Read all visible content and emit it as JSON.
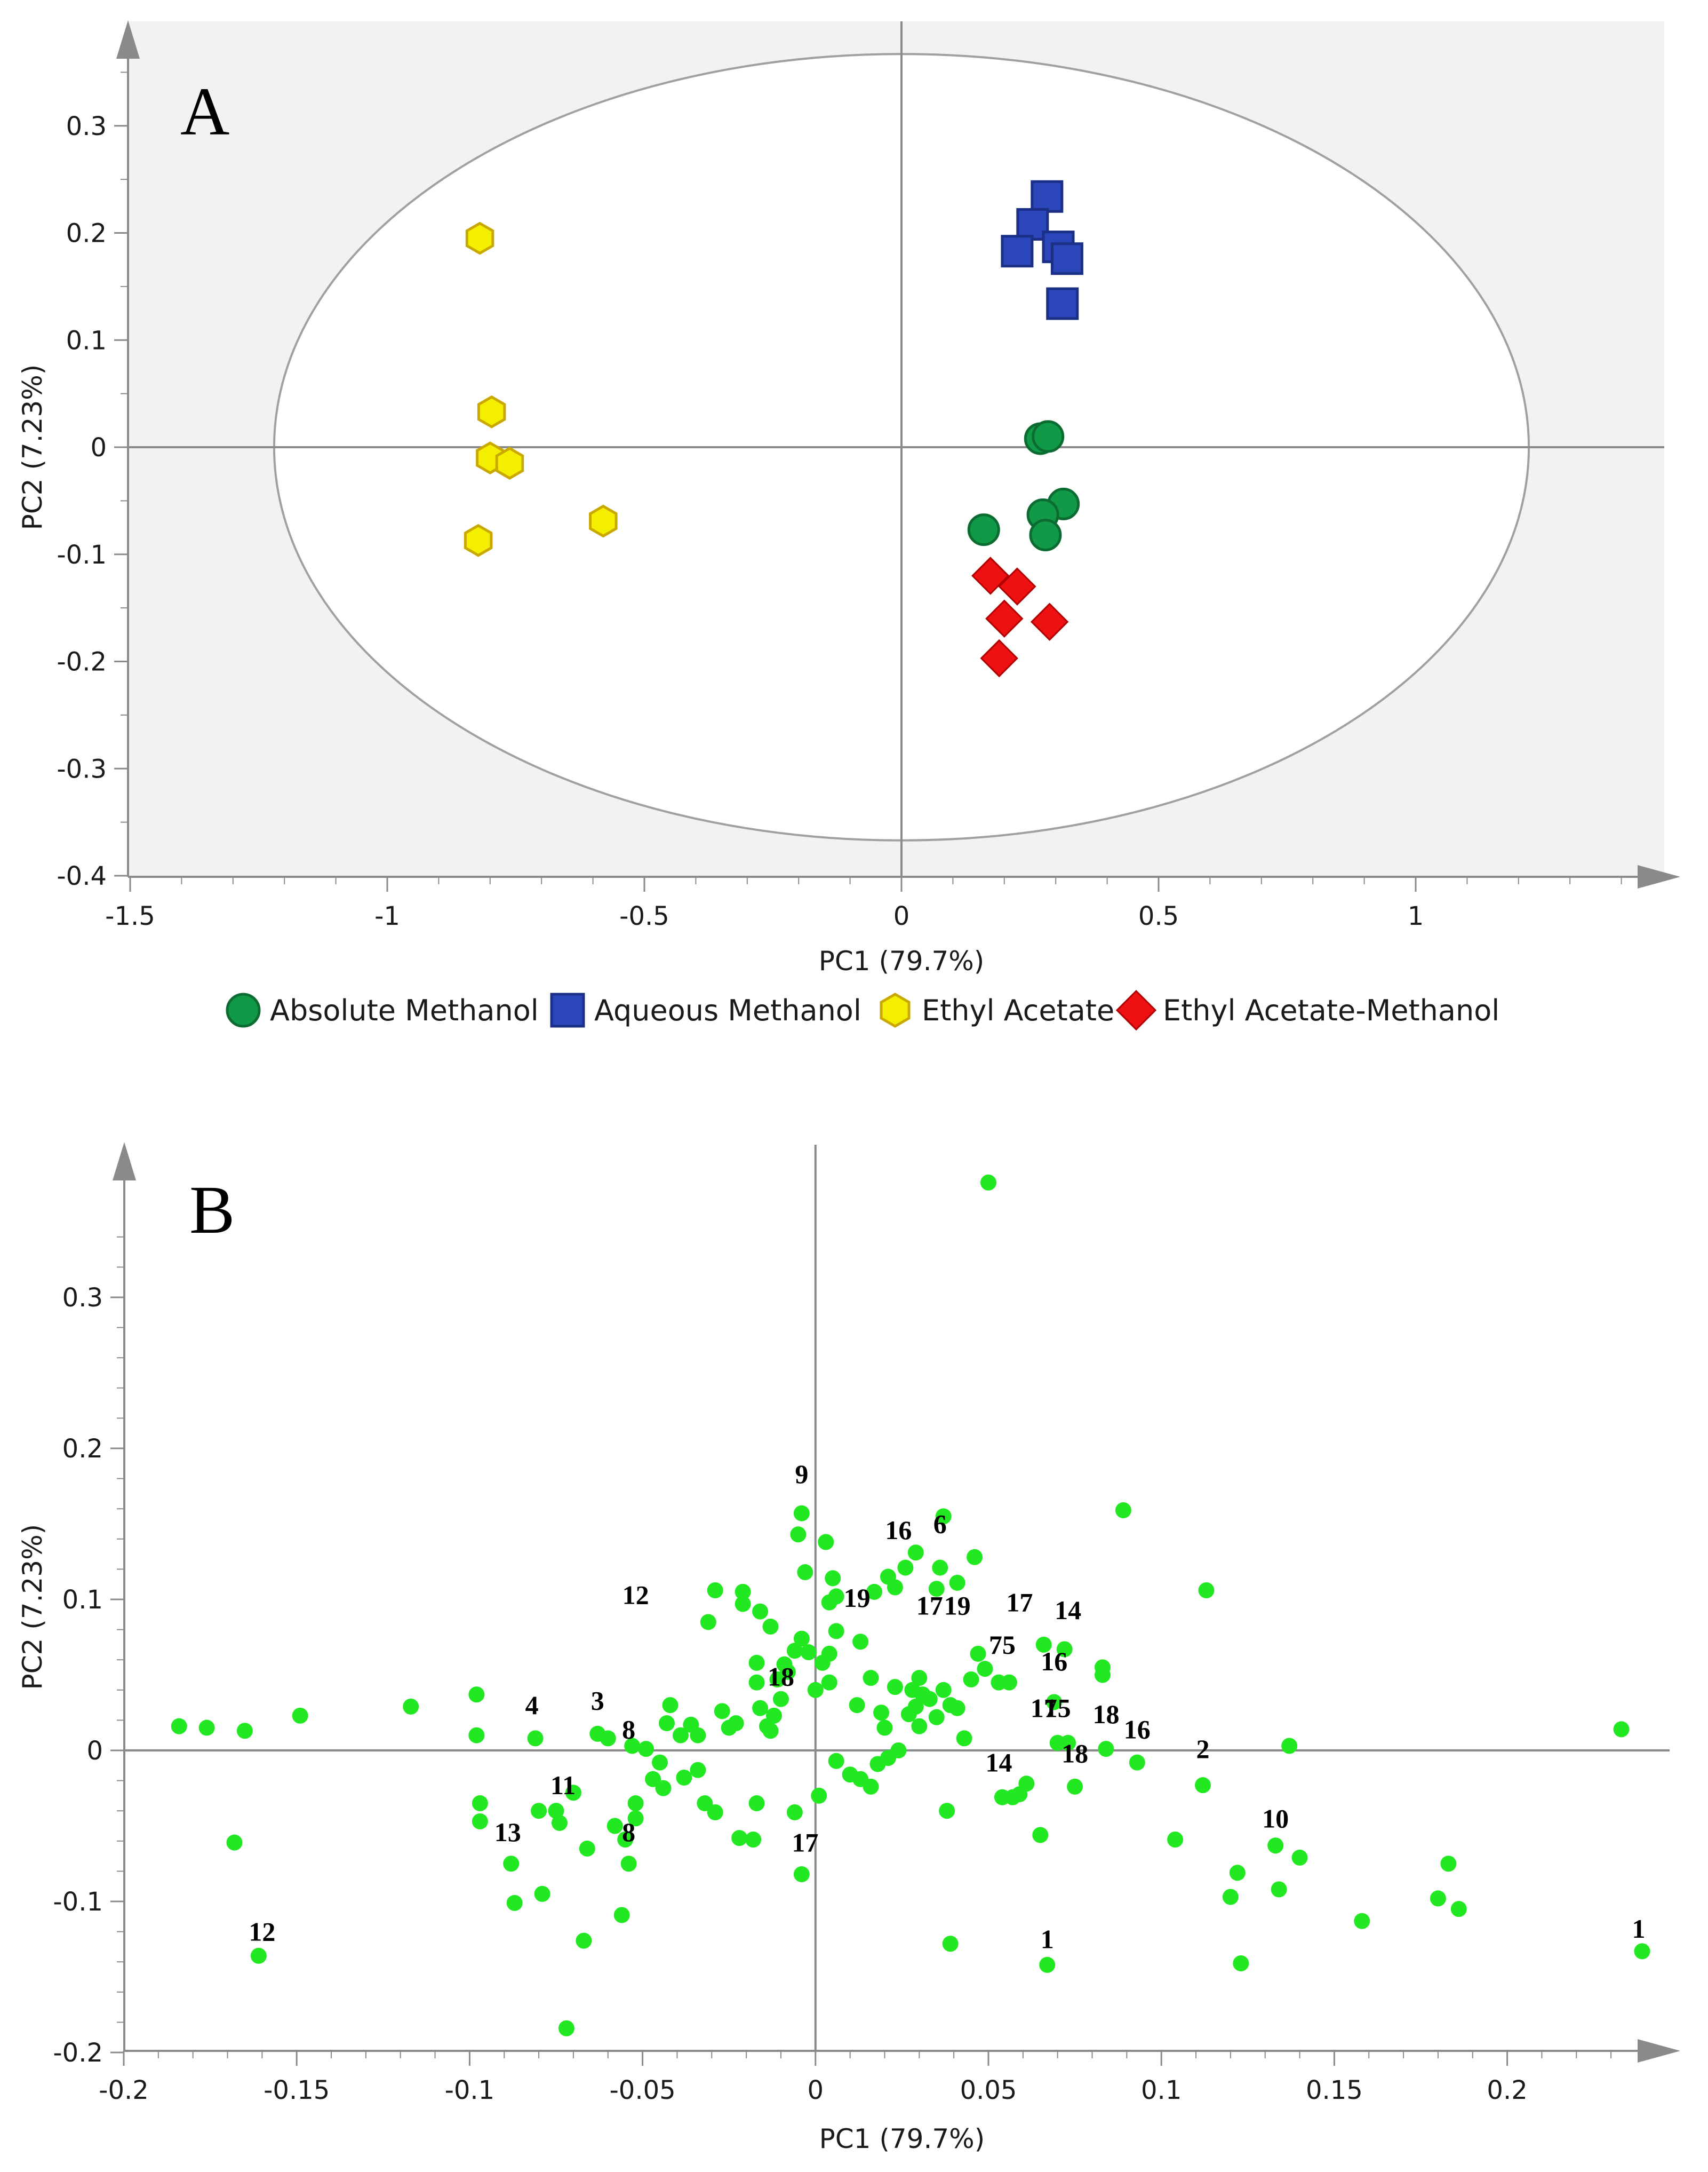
{
  "colors": {
    "absolute_methanol": "#109a47",
    "aqueous_methanol": "#2a46b8",
    "ethyl_acetate": "#f4ef00",
    "ethyl_acetate_methanol": "#ee1111",
    "loadings": "#22e822",
    "panel_bg": "#f2f2f2",
    "axis": "#8a8a8a"
  },
  "chart_data": [
    {
      "panel": "A",
      "type": "scatter",
      "xlabel": "PC1 (79.7%)",
      "ylabel": "PC2 (7.23%)",
      "xlim": [
        -1.5,
        1.5
      ],
      "ylim": [
        -0.4,
        0.4
      ],
      "xticks": [
        -1.5,
        -1,
        -0.5,
        0,
        0.5,
        1
      ],
      "xtick_labels": [
        "-1.5",
        "-1",
        "-0.5",
        "0",
        "0.5",
        "1"
      ],
      "yticks": [
        -0.4,
        -0.3,
        -0.2,
        -0.1,
        0,
        0.1,
        0.2,
        0.3
      ],
      "ytick_labels": [
        "-0.4",
        "-0.3",
        "-0.2",
        "-0.1",
        "0",
        "0.1",
        "0.2",
        "0.3"
      ],
      "grid": false,
      "ellipse": {
        "cx": 0.0,
        "cy": 0.0,
        "rx": 1.22,
        "ry": 0.367
      },
      "legend_position": "bottom",
      "series": [
        {
          "name": "Absolute Methanol",
          "marker": "circle",
          "x": [
            0.27,
            0.285,
            0.16,
            0.315,
            0.275,
            0.28
          ],
          "y": [
            0.008,
            0.01,
            -0.077,
            -0.053,
            -0.063,
            -0.082
          ]
        },
        {
          "name": "Aqueous Methanol",
          "marker": "square",
          "x": [
            0.283,
            0.255,
            0.225,
            0.305,
            0.322,
            0.313
          ],
          "y": [
            0.234,
            0.208,
            0.183,
            0.187,
            0.176,
            0.134
          ]
        },
        {
          "name": "Ethyl Acetate",
          "marker": "hexagon",
          "x": [
            -0.82,
            -0.797,
            -0.8,
            -0.762,
            -0.823,
            -0.58
          ],
          "y": [
            0.195,
            0.033,
            -0.01,
            -0.015,
            -0.087,
            -0.069
          ]
        },
        {
          "name": "Ethyl Acetate-Methanol",
          "marker": "diamond",
          "x": [
            0.173,
            0.225,
            0.2,
            0.288,
            0.19
          ],
          "y": [
            -0.12,
            -0.13,
            -0.16,
            -0.163,
            -0.197
          ]
        }
      ]
    },
    {
      "panel": "B",
      "type": "scatter",
      "xlabel": "PC1 (79.7%)",
      "ylabel": "PC2 (7.23%)",
      "xlim": [
        -0.2,
        0.25
      ],
      "ylim": [
        -0.2,
        0.39
      ],
      "xticks": [
        -0.2,
        -0.15,
        -0.1,
        -0.05,
        0,
        0.05,
        0.1,
        0.15,
        0.2
      ],
      "xtick_labels": [
        "-0.2",
        "-0.15",
        "-0.1",
        "-0.05",
        "0",
        "0.05",
        "0.1",
        "0.15",
        "0.2"
      ],
      "yticks": [
        -0.2,
        -0.1,
        0,
        0.1,
        0.2,
        0.3
      ],
      "ytick_labels": [
        "-0.2",
        "-0.1",
        "0",
        "0.1",
        "0.2",
        "0.3"
      ],
      "grid": false,
      "points": [
        [
          -0.184,
          0.016
        ],
        [
          -0.176,
          0.015
        ],
        [
          -0.165,
          0.013
        ],
        [
          -0.149,
          0.023
        ],
        [
          -0.117,
          0.029
        ],
        [
          -0.098,
          0.037
        ],
        [
          -0.098,
          0.01
        ],
        [
          -0.097,
          -0.035
        ],
        [
          -0.097,
          -0.047
        ],
        [
          -0.168,
          -0.061
        ],
        [
          -0.161,
          -0.136
        ],
        [
          -0.072,
          -0.184
        ],
        [
          -0.08,
          -0.04
        ],
        [
          -0.088,
          -0.075
        ],
        [
          -0.087,
          -0.101
        ],
        [
          -0.079,
          -0.095
        ],
        [
          -0.067,
          -0.126
        ],
        [
          -0.075,
          -0.04
        ],
        [
          -0.074,
          -0.048
        ],
        [
          -0.07,
          -0.028
        ],
        [
          -0.066,
          -0.065
        ],
        [
          -0.058,
          -0.05
        ],
        [
          -0.054,
          -0.075
        ],
        [
          -0.056,
          -0.109
        ],
        [
          -0.052,
          -0.045
        ],
        [
          -0.052,
          -0.035
        ],
        [
          -0.055,
          -0.059
        ],
        [
          -0.081,
          0.008
        ],
        [
          -0.063,
          0.011
        ],
        [
          -0.06,
          0.008
        ],
        [
          -0.053,
          0.003
        ],
        [
          -0.049,
          0.001
        ],
        [
          -0.043,
          0.018
        ],
        [
          -0.042,
          0.03
        ],
        [
          -0.039,
          0.01
        ],
        [
          -0.036,
          0.017
        ],
        [
          -0.034,
          0.01
        ],
        [
          -0.031,
          0.085
        ],
        [
          -0.029,
          0.106
        ],
        [
          -0.027,
          0.026
        ],
        [
          -0.025,
          0.015
        ],
        [
          -0.023,
          0.018
        ],
        [
          -0.021,
          0.097
        ],
        [
          -0.021,
          0.105
        ],
        [
          -0.017,
          0.058
        ],
        [
          -0.016,
          0.028
        ],
        [
          -0.014,
          0.016
        ],
        [
          -0.013,
          0.013
        ],
        [
          -0.012,
          0.023
        ],
        [
          -0.01,
          0.034
        ],
        [
          -0.008,
          0.052
        ],
        [
          -0.006,
          0.066
        ],
        [
          -0.004,
          0.074
        ],
        [
          -0.002,
          0.065
        ],
        [
          0.0,
          0.04
        ],
        [
          0.002,
          0.058
        ],
        [
          0.004,
          0.064
        ],
        [
          0.006,
          0.079
        ],
        [
          -0.003,
          0.118
        ],
        [
          -0.005,
          0.143
        ],
        [
          -0.004,
          0.157
        ],
        [
          0.003,
          0.138
        ],
        [
          0.004,
          0.098
        ],
        [
          0.005,
          0.114
        ],
        [
          0.006,
          0.102
        ],
        [
          -0.013,
          0.082
        ],
        [
          -0.016,
          0.092
        ],
        [
          -0.045,
          -0.008
        ],
        [
          -0.047,
          -0.019
        ],
        [
          -0.044,
          -0.025
        ],
        [
          -0.038,
          -0.018
        ],
        [
          -0.034,
          -0.013
        ],
        [
          -0.032,
          -0.035
        ],
        [
          -0.029,
          -0.041
        ],
        [
          -0.017,
          -0.035
        ],
        [
          -0.022,
          -0.058
        ],
        [
          -0.018,
          -0.059
        ],
        [
          -0.006,
          -0.041
        ],
        [
          -0.004,
          -0.082
        ],
        [
          0.001,
          -0.03
        ],
        [
          0.006,
          -0.007
        ],
        [
          0.01,
          -0.016
        ],
        [
          0.013,
          -0.019
        ],
        [
          0.016,
          -0.024
        ],
        [
          0.018,
          -0.009
        ],
        [
          0.021,
          -0.005
        ],
        [
          0.024,
          0.0
        ],
        [
          0.027,
          0.024
        ],
        [
          0.029,
          0.029
        ],
        [
          0.03,
          0.016
        ],
        [
          0.031,
          0.037
        ],
        [
          0.033,
          0.034
        ],
        [
          0.035,
          0.022
        ],
        [
          0.037,
          0.04
        ],
        [
          0.039,
          0.03
        ],
        [
          0.041,
          0.028
        ],
        [
          0.043,
          0.008
        ],
        [
          0.045,
          0.047
        ],
        [
          0.047,
          0.064
        ],
        [
          0.049,
          0.054
        ],
        [
          0.035,
          0.107
        ],
        [
          0.036,
          0.121
        ],
        [
          0.037,
          0.155
        ],
        [
          0.041,
          0.111
        ],
        [
          0.046,
          0.128
        ],
        [
          0.029,
          0.131
        ],
        [
          0.026,
          0.121
        ],
        [
          0.023,
          0.108
        ],
        [
          0.021,
          0.115
        ],
        [
          0.017,
          0.105
        ],
        [
          0.013,
          0.072
        ],
        [
          0.016,
          0.048
        ],
        [
          0.019,
          0.025
        ],
        [
          0.023,
          0.042
        ],
        [
          0.028,
          0.04
        ],
        [
          0.038,
          -0.04
        ],
        [
          0.039,
          -0.128
        ],
        [
          0.05,
          0.376
        ],
        [
          0.053,
          0.045
        ],
        [
          0.056,
          0.045
        ],
        [
          0.054,
          -0.031
        ],
        [
          0.057,
          -0.031
        ],
        [
          0.059,
          -0.029
        ],
        [
          0.061,
          -0.022
        ],
        [
          0.065,
          -0.056
        ],
        [
          0.067,
          -0.142
        ],
        [
          0.066,
          0.07
        ],
        [
          0.069,
          0.032
        ],
        [
          0.07,
          0.005
        ],
        [
          0.073,
          0.005
        ],
        [
          0.075,
          -0.024
        ],
        [
          0.072,
          0.067
        ],
        [
          0.083,
          0.055
        ],
        [
          0.083,
          0.05
        ],
        [
          0.084,
          0.001
        ],
        [
          0.089,
          0.159
        ],
        [
          0.093,
          -0.008
        ],
        [
          0.104,
          -0.059
        ],
        [
          0.113,
          0.106
        ],
        [
          0.112,
          -0.023
        ],
        [
          0.12,
          -0.097
        ],
        [
          0.122,
          -0.081
        ],
        [
          0.123,
          -0.141
        ],
        [
          0.133,
          -0.063
        ],
        [
          0.134,
          -0.092
        ],
        [
          0.137,
          0.003
        ],
        [
          0.14,
          -0.071
        ],
        [
          0.158,
          -0.113
        ],
        [
          0.18,
          -0.098
        ],
        [
          0.183,
          -0.075
        ],
        [
          0.186,
          -0.105
        ],
        [
          0.233,
          0.014
        ],
        [
          0.239,
          -0.133
        ],
        [
          -0.017,
          0.045
        ],
        [
          -0.011,
          0.047
        ],
        [
          -0.009,
          0.057
        ],
        [
          0.03,
          0.048
        ],
        [
          0.02,
          0.015
        ],
        [
          0.012,
          0.03
        ],
        [
          0.004,
          0.045
        ]
      ],
      "annotations": [
        {
          "text": "9",
          "x": -0.004,
          "y": 0.177
        },
        {
          "text": "16",
          "x": 0.024,
          "y": 0.14
        },
        {
          "text": "6",
          "x": 0.036,
          "y": 0.144
        },
        {
          "text": "12",
          "x": -0.052,
          "y": 0.097
        },
        {
          "text": "19",
          "x": 0.012,
          "y": 0.095
        },
        {
          "text": "17",
          "x": 0.033,
          "y": 0.09
        },
        {
          "text": "19",
          "x": 0.041,
          "y": 0.09
        },
        {
          "text": "17",
          "x": 0.059,
          "y": 0.092
        },
        {
          "text": "14",
          "x": 0.073,
          "y": 0.087
        },
        {
          "text": "75",
          "x": 0.054,
          "y": 0.064
        },
        {
          "text": "16",
          "x": 0.069,
          "y": 0.053
        },
        {
          "text": "18",
          "x": -0.01,
          "y": 0.043
        },
        {
          "text": "4",
          "x": -0.082,
          "y": 0.024
        },
        {
          "text": "3",
          "x": -0.063,
          "y": 0.027
        },
        {
          "text": "8",
          "x": -0.054,
          "y": 0.008
        },
        {
          "text": "15",
          "x": 0.07,
          "y": 0.022
        },
        {
          "text": "17",
          "x": 0.066,
          "y": 0.022
        },
        {
          "text": "18",
          "x": 0.084,
          "y": 0.018
        },
        {
          "text": "16",
          "x": 0.093,
          "y": 0.008
        },
        {
          "text": "2",
          "x": 0.112,
          "y": -0.005
        },
        {
          "text": "14",
          "x": 0.053,
          "y": -0.014
        },
        {
          "text": "18",
          "x": 0.075,
          "y": -0.008
        },
        {
          "text": "11",
          "x": -0.073,
          "y": -0.029
        },
        {
          "text": "13",
          "x": -0.089,
          "y": -0.06
        },
        {
          "text": "8",
          "x": -0.054,
          "y": -0.06
        },
        {
          "text": "17",
          "x": -0.003,
          "y": -0.067
        },
        {
          "text": "10",
          "x": 0.133,
          "y": -0.051
        },
        {
          "text": "12",
          "x": -0.16,
          "y": -0.126
        },
        {
          "text": "1",
          "x": 0.067,
          "y": -0.131
        },
        {
          "text": "1",
          "x": 0.238,
          "y": -0.124
        }
      ]
    }
  ]
}
